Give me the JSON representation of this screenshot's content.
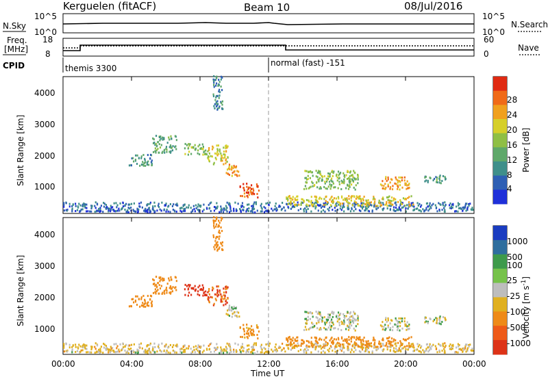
{
  "header": {
    "station": "Kerguelen (fitACF)",
    "beam": "Beam 10",
    "date": "08/Jul/2016"
  },
  "status": {
    "nsky_label": "N.Sky",
    "nsearch_label": "N.Search",
    "noise_ticks": [
      "10^5",
      "10^0"
    ],
    "freq_label_1": "Freq.",
    "freq_label_2": "[MHz]",
    "freq_ticks": [
      "18",
      "8"
    ],
    "nave_label": "Nave",
    "nave_ticks": [
      "60",
      "0"
    ],
    "cpid_label": "CPID",
    "cpid_1": "themis 3300",
    "cpid_2": "normal (fast) -151"
  },
  "panels": {
    "power": {
      "ylabel": "Slant Range [km]",
      "yticks": [
        "4000",
        "3000",
        "2000",
        "1000"
      ],
      "cbar_label": "Power [dB]",
      "cbar_ticks": [
        "28",
        "24",
        "20",
        "16",
        "12",
        "8",
        "4"
      ]
    },
    "velocity": {
      "ylabel": "Slant Range [km]",
      "yticks": [
        "4000",
        "3000",
        "2000",
        "1000"
      ],
      "cbar_label": "Velocity [m s",
      "cbar_label_sup": "-1",
      "cbar_ticks": [
        "1000",
        "500",
        "100",
        "25",
        "-25",
        "-100",
        "-500",
        "-1000"
      ]
    }
  },
  "xaxis": {
    "ticks": [
      "00:00",
      "04:00",
      "08:00",
      "12:00",
      "16:00",
      "20:00",
      "00:00"
    ],
    "label": "Time UT"
  },
  "chart_data": {
    "type": "heatmap",
    "title": "Kerguelen (fitACF)",
    "subtitle": "Beam 10",
    "date": "08/Jul/2016",
    "xlabel": "Time UT",
    "ylabel": "Slant Range [km]",
    "xlim_hours": [
      0,
      24
    ],
    "ylim_km": [
      180,
      4500
    ],
    "power_scale_db": [
      0,
      30
    ],
    "velocity_bins_ms": [
      -1000,
      -500,
      -100,
      -25,
      25,
      100,
      500,
      1000
    ],
    "freq_mhz": {
      "start": 10.5,
      "after_0100": 13,
      "after_1300": 10
    },
    "scatter_regions": [
      {
        "t0": 0.0,
        "t1": 24.0,
        "r0": 200,
        "r1": 500,
        "power": 6,
        "velocity": -50
      },
      {
        "t0": 0.0,
        "t1": 12.0,
        "r0": 180,
        "r1": 240,
        "power": 3,
        "velocity": 0
      },
      {
        "t0": 3.8,
        "t1": 5.2,
        "r0": 1650,
        "r1": 2000,
        "power": 9,
        "velocity": -300
      },
      {
        "t0": 5.2,
        "t1": 6.6,
        "r0": 2050,
        "r1": 2600,
        "power": 11,
        "velocity": -400
      },
      {
        "t0": 7.0,
        "t1": 8.4,
        "r0": 2000,
        "r1": 2350,
        "power": 14,
        "velocity": -600
      },
      {
        "t0": 8.4,
        "t1": 9.6,
        "r0": 1700,
        "r1": 2300,
        "power": 18,
        "velocity": -500
      },
      {
        "t0": 8.7,
        "t1": 9.3,
        "r0": 3400,
        "r1": 4500,
        "power": 8,
        "velocity": -200
      },
      {
        "t0": 9.5,
        "t1": 10.3,
        "r0": 1300,
        "r1": 1700,
        "power": 22,
        "velocity": 0
      },
      {
        "t0": 10.3,
        "t1": 11.4,
        "r0": 650,
        "r1": 1100,
        "power": 26,
        "velocity": -150
      },
      {
        "t0": 13.0,
        "t1": 20.5,
        "r0": 380,
        "r1": 700,
        "power": 19,
        "velocity": -400
      },
      {
        "t0": 14.0,
        "t1": 17.2,
        "r0": 900,
        "r1": 1500,
        "power": 14,
        "velocity": 0
      },
      {
        "t0": 18.5,
        "t1": 20.2,
        "r0": 900,
        "r1": 1300,
        "power": 22,
        "velocity": 0
      },
      {
        "t0": 21.0,
        "t1": 22.4,
        "r0": 1100,
        "r1": 1350,
        "power": 10,
        "velocity": 0
      }
    ]
  }
}
